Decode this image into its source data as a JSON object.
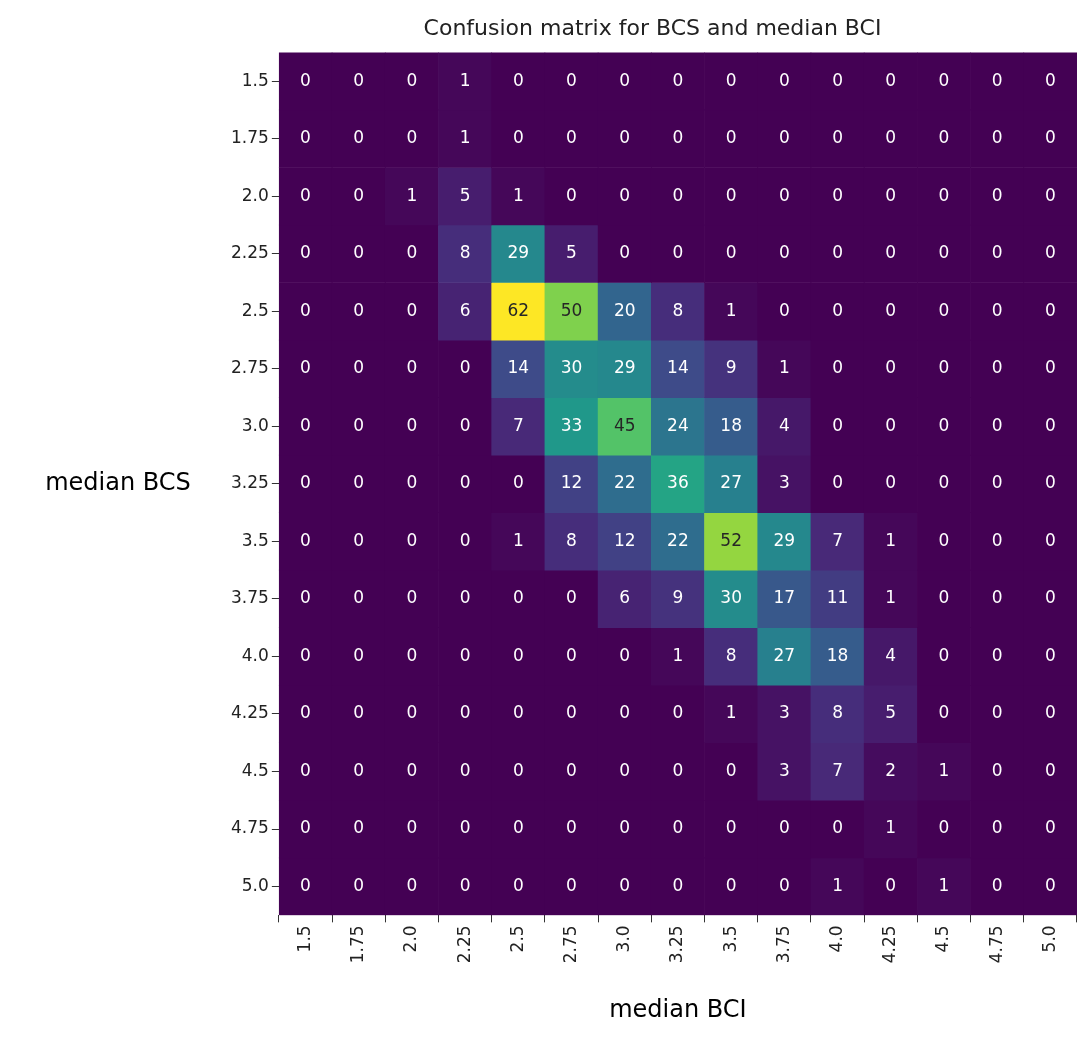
{
  "chart_data": {
    "type": "heatmap",
    "title": "Confusion matrix for BCS and median BCI",
    "xlabel": "median BCI",
    "ylabel": "median BCS",
    "categories": [
      "1.5",
      "1.75",
      "2.0",
      "2.25",
      "2.5",
      "2.75",
      "3.0",
      "3.25",
      "3.5",
      "3.75",
      "4.0",
      "4.25",
      "4.5",
      "4.75",
      "5.0"
    ],
    "y_categories": [
      "1.5",
      "1.75",
      "2.0",
      "2.25",
      "2.5",
      "2.75",
      "3.0",
      "3.25",
      "3.5",
      "3.75",
      "4.0",
      "4.25",
      "4.5",
      "4.75",
      "5.0"
    ],
    "data_labels": true,
    "cells": [
      [
        0,
        0,
        0,
        1,
        0,
        0,
        0,
        0,
        0,
        0,
        0,
        0,
        0,
        0,
        0
      ],
      [
        0,
        0,
        0,
        1,
        0,
        0,
        0,
        0,
        0,
        0,
        0,
        0,
        0,
        0,
        0
      ],
      [
        0,
        0,
        1,
        5,
        1,
        0,
        0,
        0,
        0,
        0,
        0,
        0,
        0,
        0,
        0
      ],
      [
        0,
        0,
        0,
        8,
        29,
        5,
        0,
        0,
        0,
        0,
        0,
        0,
        0,
        0,
        0
      ],
      [
        0,
        0,
        0,
        6,
        62,
        50,
        20,
        8,
        1,
        0,
        0,
        0,
        0,
        0,
        0
      ],
      [
        0,
        0,
        0,
        0,
        14,
        30,
        29,
        14,
        9,
        1,
        0,
        0,
        0,
        0,
        0
      ],
      [
        0,
        0,
        0,
        0,
        7,
        33,
        45,
        24,
        18,
        4,
        0,
        0,
        0,
        0,
        0
      ],
      [
        0,
        0,
        0,
        0,
        0,
        12,
        22,
        36,
        27,
        3,
        0,
        0,
        0,
        0,
        0
      ],
      [
        0,
        0,
        0,
        0,
        1,
        8,
        12,
        22,
        52,
        29,
        7,
        1,
        0,
        0,
        0
      ],
      [
        0,
        0,
        0,
        0,
        0,
        0,
        6,
        9,
        30,
        17,
        11,
        1,
        0,
        0,
        0
      ],
      [
        0,
        0,
        0,
        0,
        0,
        0,
        0,
        1,
        8,
        27,
        18,
        4,
        0,
        0,
        0
      ],
      [
        0,
        0,
        0,
        0,
        0,
        0,
        0,
        0,
        1,
        3,
        8,
        5,
        0,
        0,
        0
      ],
      [
        0,
        0,
        0,
        0,
        0,
        0,
        0,
        0,
        0,
        3,
        7,
        2,
        1,
        0,
        0
      ],
      [
        0,
        0,
        0,
        0,
        0,
        0,
        0,
        0,
        0,
        0,
        0,
        1,
        0,
        0,
        0
      ],
      [
        0,
        0,
        0,
        0,
        0,
        0,
        0,
        0,
        0,
        0,
        1,
        0,
        1,
        0,
        0
      ]
    ]
  }
}
